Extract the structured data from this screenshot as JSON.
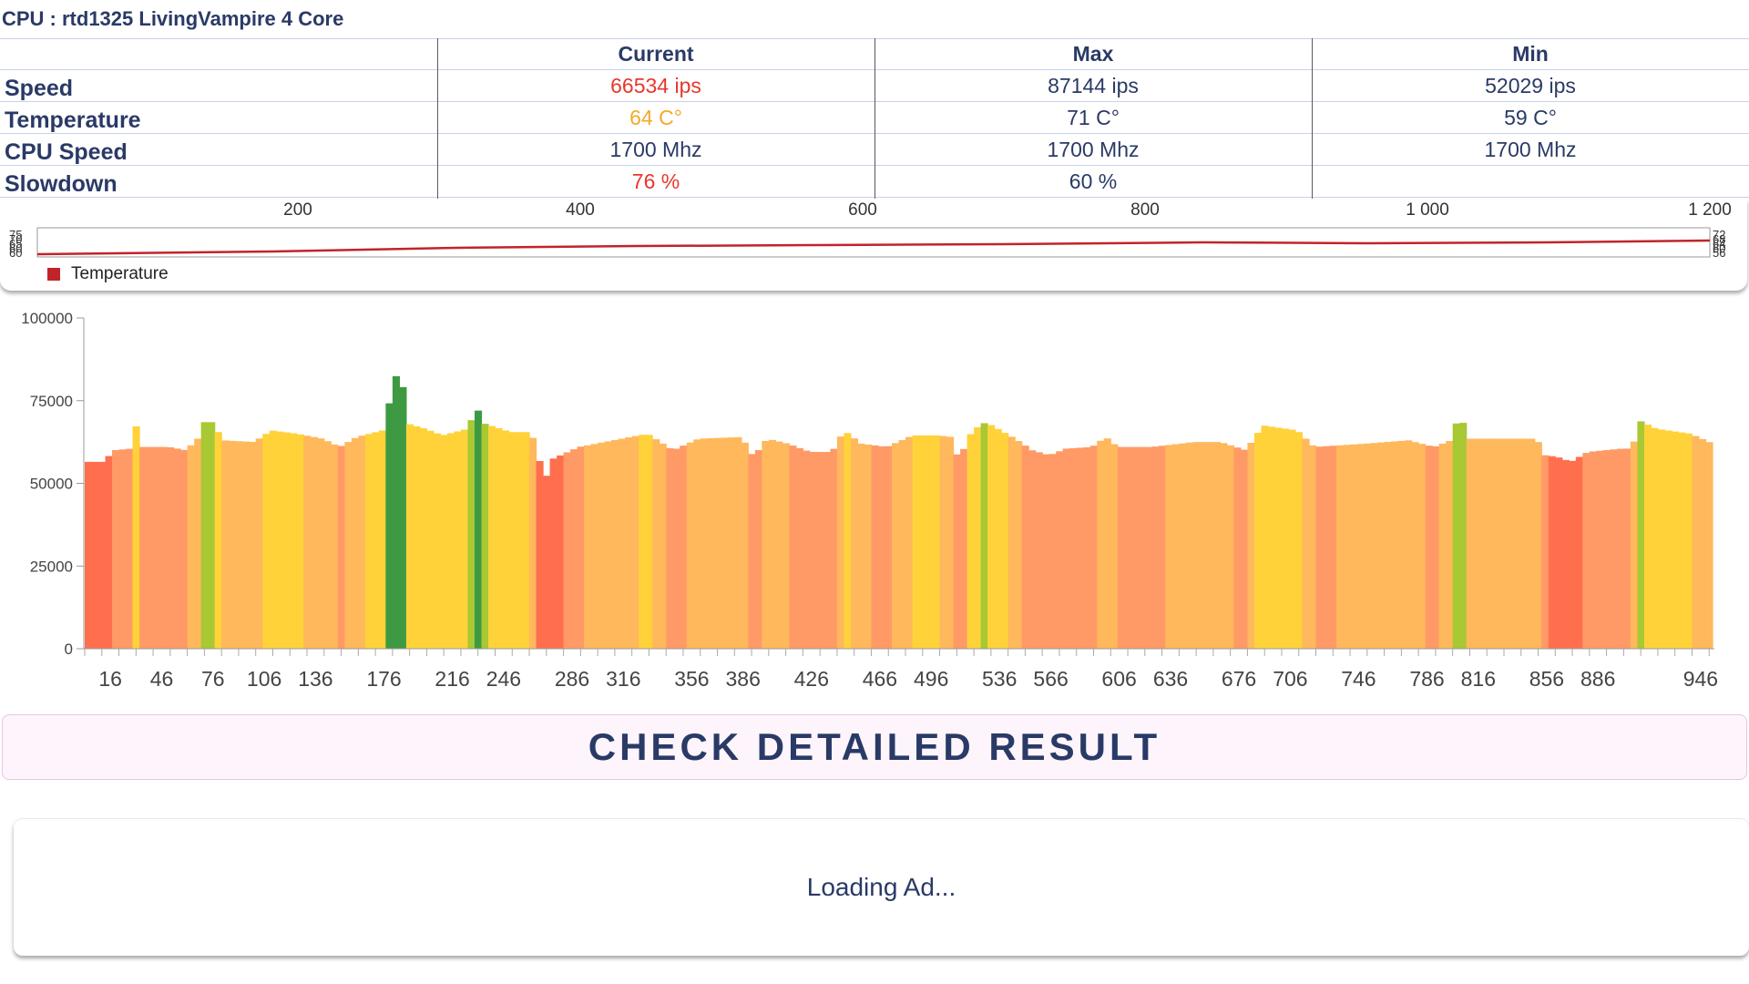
{
  "header": {
    "title": "CPU : rtd1325 LivingVampire 4 Core"
  },
  "stats": {
    "columns": [
      "Current",
      "Max",
      "Min"
    ],
    "rows": [
      {
        "label": "Speed",
        "current": "66534 ips",
        "max": "87144 ips",
        "min": "52029 ips",
        "current_color": "#e8372c"
      },
      {
        "label": "Temperature",
        "current": "64 C°",
        "max": "71 C°",
        "min": "59 C°",
        "current_color": "#f4a92a"
      },
      {
        "label": "CPU Speed",
        "current": "1700 Mhz",
        "max": "1700 Mhz",
        "min": "1700 Mhz",
        "current_color": "#2a3a66"
      },
      {
        "label": "Slowdown",
        "current": "76 %",
        "max": "60 %",
        "min": "",
        "current_color": "#e8372c"
      }
    ]
  },
  "temperature_chart": {
    "x_ticks": [
      "200",
      "400",
      "600",
      "800",
      "1 000",
      "1 200"
    ],
    "legend": "Temperature",
    "series_color": "#c0242a"
  },
  "chart_data": {
    "type": "bar",
    "ylim": [
      0,
      100000
    ],
    "y_ticks": [
      "100000",
      "75000",
      "50000",
      "25000",
      "0"
    ],
    "x_ticks": [
      "16",
      "46",
      "76",
      "106",
      "136",
      "176",
      "216",
      "246",
      "286",
      "316",
      "356",
      "386",
      "426",
      "466",
      "496",
      "536",
      "566",
      "606",
      "636",
      "676",
      "706",
      "746",
      "786",
      "816",
      "856",
      "886",
      "946"
    ],
    "x_range": [
      1,
      953
    ],
    "profile": [
      [
        1,
        56500
      ],
      [
        12,
        56500
      ],
      [
        18,
        60000
      ],
      [
        28,
        60500
      ],
      [
        30,
        66000
      ],
      [
        32,
        68500
      ],
      [
        35,
        61000
      ],
      [
        50,
        61000
      ],
      [
        60,
        60000
      ],
      [
        68,
        64000
      ],
      [
        72,
        70000
      ],
      [
        76,
        68000
      ],
      [
        82,
        63000
      ],
      [
        100,
        62500
      ],
      [
        110,
        66000
      ],
      [
        125,
        65000
      ],
      [
        140,
        63500
      ],
      [
        150,
        61000
      ],
      [
        160,
        64000
      ],
      [
        175,
        66000
      ],
      [
        185,
        86500
      ],
      [
        190,
        68000
      ],
      [
        200,
        66500
      ],
      [
        210,
        64500
      ],
      [
        225,
        66500
      ],
      [
        230,
        73000
      ],
      [
        235,
        68000
      ],
      [
        250,
        65500
      ],
      [
        262,
        65500
      ],
      [
        268,
        55000
      ],
      [
        270,
        51000
      ],
      [
        275,
        57500
      ],
      [
        290,
        61000
      ],
      [
        300,
        62000
      ],
      [
        330,
        65000
      ],
      [
        345,
        60000
      ],
      [
        360,
        63500
      ],
      [
        385,
        64000
      ],
      [
        392,
        58000
      ],
      [
        400,
        63500
      ],
      [
        412,
        62000
      ],
      [
        425,
        59500
      ],
      [
        438,
        59500
      ],
      [
        445,
        66000
      ],
      [
        455,
        62000
      ],
      [
        470,
        61000
      ],
      [
        485,
        64500
      ],
      [
        500,
        64500
      ],
      [
        508,
        64000
      ],
      [
        512,
        57000
      ],
      [
        520,
        66000
      ],
      [
        528,
        68500
      ],
      [
        545,
        63500
      ],
      [
        555,
        60000
      ],
      [
        565,
        58500
      ],
      [
        575,
        60500
      ],
      [
        590,
        61000
      ],
      [
        598,
        64000
      ],
      [
        605,
        61000
      ],
      [
        625,
        61000
      ],
      [
        650,
        62500
      ],
      [
        665,
        62500
      ],
      [
        680,
        60000
      ],
      [
        690,
        67500
      ],
      [
        710,
        66000
      ],
      [
        720,
        61000
      ],
      [
        735,
        61500
      ],
      [
        750,
        62000
      ],
      [
        775,
        63000
      ],
      [
        790,
        61000
      ],
      [
        800,
        63000
      ],
      [
        805,
        71500
      ],
      [
        810,
        63500
      ],
      [
        830,
        63500
      ],
      [
        850,
        63500
      ],
      [
        855,
        58500
      ],
      [
        862,
        58000
      ],
      [
        870,
        56500
      ],
      [
        880,
        59500
      ],
      [
        890,
        60000
      ],
      [
        900,
        60500
      ],
      [
        906,
        60500
      ],
      [
        910,
        69000
      ],
      [
        920,
        66500
      ],
      [
        940,
        65000
      ],
      [
        953,
        62000
      ]
    ]
  },
  "cta": {
    "label": "CHECK DETAILED RESULT"
  },
  "ad": {
    "text": "Loading Ad..."
  }
}
